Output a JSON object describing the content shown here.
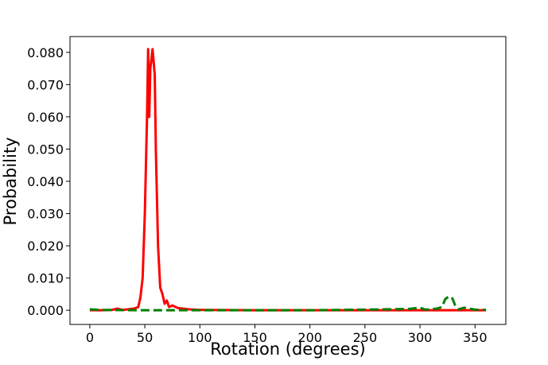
{
  "chart_data": {
    "type": "line",
    "xlabel": "Rotation (degrees)",
    "ylabel": "Probability",
    "xlim": [
      -18,
      378
    ],
    "ylim": [
      -0.0044,
      0.0849
    ],
    "xticks": [
      0,
      50,
      100,
      150,
      200,
      250,
      300,
      350
    ],
    "yticks": [
      {
        "value": 0,
        "label": "0.000"
      },
      {
        "value": 0.01,
        "label": "0.010"
      },
      {
        "value": 0.02,
        "label": "0.020"
      },
      {
        "value": 0.03,
        "label": "0.030"
      },
      {
        "value": 0.04,
        "label": "0.040"
      },
      {
        "value": 0.05,
        "label": "0.050"
      },
      {
        "value": 0.06,
        "label": "0.060"
      },
      {
        "value": 0.07,
        "label": "0.070"
      },
      {
        "value": 0.08,
        "label": "0.080"
      }
    ],
    "series": [
      {
        "color": "#ff0000",
        "linestyle": "solid",
        "x": [
          0,
          10,
          20,
          25,
          30,
          40,
          44,
          46,
          48,
          50,
          52,
          53,
          54,
          55,
          57,
          59,
          60,
          62,
          64,
          66,
          68,
          70,
          72,
          75,
          80,
          90,
          100,
          150,
          200,
          250,
          300,
          360
        ],
        "values": [
          0,
          0,
          0.0001,
          0.0005,
          0.0001,
          0.0005,
          0.001,
          0.004,
          0.01,
          0.03,
          0.06,
          0.081,
          0.06,
          0.075,
          0.081,
          0.073,
          0.05,
          0.02,
          0.007,
          0.005,
          0.002,
          0.003,
          0.001,
          0.0015,
          0.0007,
          0.0003,
          0.0001,
          0,
          0,
          0,
          0,
          0
        ]
      },
      {
        "color": "#008000",
        "linestyle": "dashed",
        "x": [
          0,
          10,
          50,
          100,
          200,
          250,
          290,
          300,
          305,
          315,
          320,
          323,
          326,
          329,
          332,
          335,
          340,
          345,
          350,
          360
        ],
        "values": [
          0.0003,
          0.0001,
          0,
          0,
          0,
          0.0002,
          0.0004,
          0.0008,
          0.0002,
          0.0005,
          0.001,
          0.0035,
          0.0042,
          0.004,
          0.0015,
          0.0003,
          0.0008,
          0.0005,
          0.0002,
          0.0001
        ]
      }
    ]
  }
}
